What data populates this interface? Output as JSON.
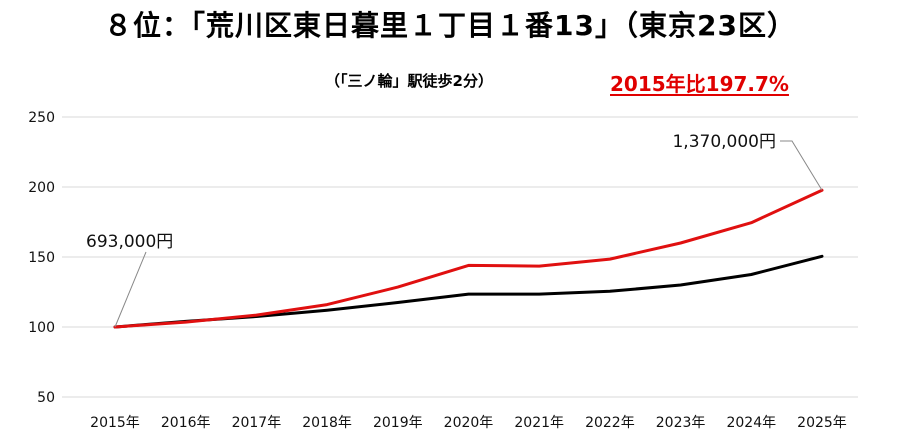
{
  "header": {
    "title": "８位：「荒川区東日暮里１丁目１番13」（東京23区）",
    "subtitle": "（「三ノ輪」駅徒歩2分）",
    "badge": "2015年比197.7%"
  },
  "colors": {
    "accent": "#e00000",
    "series_red": "#e01010",
    "series_black": "#000000",
    "grid": "#d9d9d9"
  },
  "chart_data": {
    "type": "line",
    "x": [
      "2015年",
      "2016年",
      "2017年",
      "2018年",
      "2019年",
      "2020年",
      "2021年",
      "2022年",
      "2023年",
      "2024年",
      "2025年"
    ],
    "series": [
      {
        "color": "#e01010",
        "values": [
          100,
          103.5,
          108.5,
          116,
          128.5,
          144,
          143.5,
          148.5,
          160,
          174.5,
          197.7
        ]
      },
      {
        "color": "#000000",
        "values": [
          100,
          104,
          107.5,
          112,
          117.5,
          123.5,
          123.5,
          125.5,
          130,
          137.5,
          150.5
        ]
      }
    ],
    "ylim": [
      50,
      250
    ],
    "yticks": [
      50,
      100,
      150,
      200,
      250
    ],
    "grid": true,
    "annotations": [
      {
        "text": "693,000円",
        "series": 0,
        "index": 0
      },
      {
        "text": "1,370,000円",
        "series": 0,
        "index": 10
      }
    ]
  }
}
